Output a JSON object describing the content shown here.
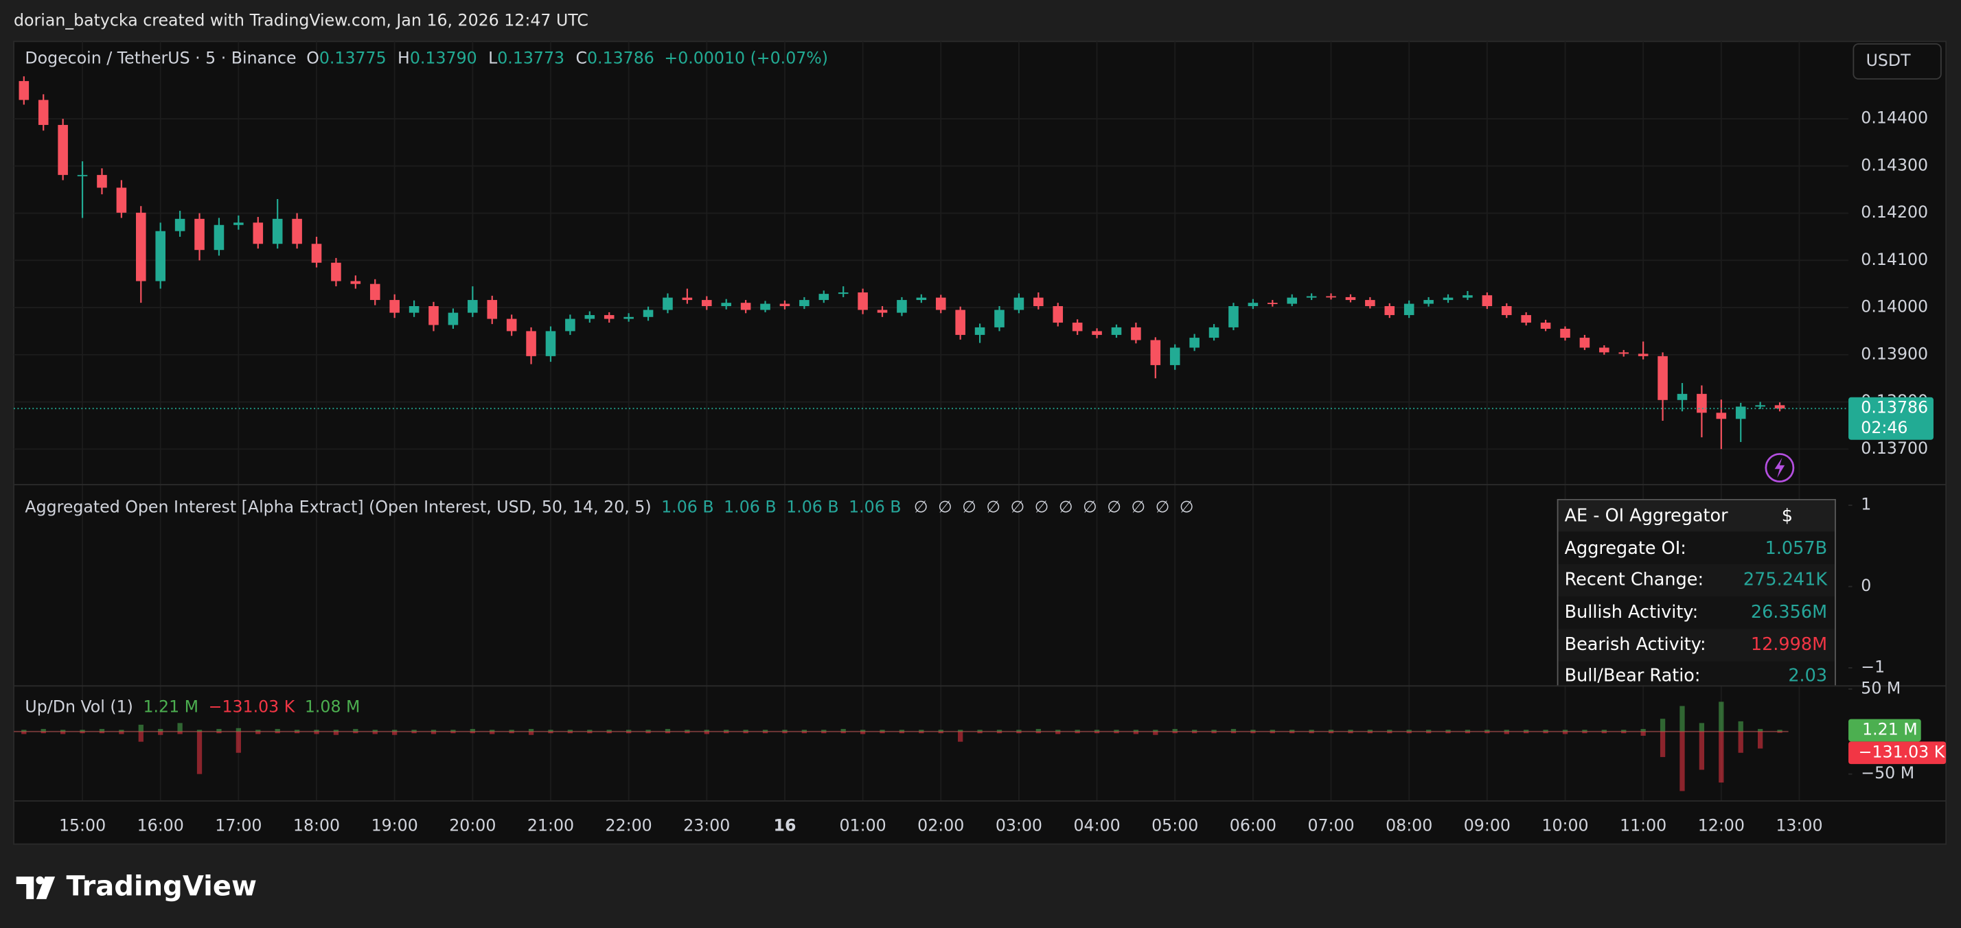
{
  "header": {
    "text": "dorian_batycka created with TradingView.com, Jan 16, 2026 12:47 UTC"
  },
  "footer": {
    "logo_text": "TradingView"
  },
  "currency_button": "USDT",
  "countdown": "02:46",
  "oi_table": {
    "title": "AE - OI Aggregator",
    "currency": "$",
    "rows": [
      [
        "Aggregate OI:",
        "1.057B"
      ],
      [
        "Recent Change:",
        "275.241K"
      ],
      [
        "Bullish Activity:",
        "26.356M"
      ],
      [
        "Bearish Activity:",
        "12.998M"
      ],
      [
        "Bull/Bear Ratio:",
        "2.03"
      ]
    ]
  },
  "chart_data": [
    {
      "type": "candlestick",
      "title": "Dogecoin / TetherUS · 5 · Binance",
      "legend": [
        {
          "label": "O",
          "value": "0.13775"
        },
        {
          "label": "H",
          "value": "0.13790"
        },
        {
          "label": "L",
          "value": "0.13773"
        },
        {
          "label": "C",
          "value": "0.13786"
        }
      ],
      "change": "+0.00010 (+0.07%)",
      "up_color": "#22ab94",
      "down_color": "#f7525f",
      "x": [
        14.25,
        14.5,
        14.75,
        15,
        15.25,
        15.5,
        15.75,
        16,
        16.25,
        16.5,
        16.75,
        17,
        17.25,
        17.5,
        17.75,
        18,
        18.25,
        18.5,
        18.75,
        19,
        19.25,
        19.5,
        19.75,
        20,
        20.25,
        20.5,
        20.75,
        21,
        21.25,
        21.5,
        21.75,
        22,
        22.25,
        22.5,
        22.75,
        23,
        23.25,
        23.5,
        23.75,
        24,
        24.25,
        24.5,
        24.75,
        25,
        25.25,
        25.5,
        25.75,
        26,
        26.25,
        26.5,
        26.75,
        27,
        27.25,
        27.5,
        27.75,
        28,
        28.25,
        28.5,
        28.75,
        29,
        29.25,
        29.5,
        29.75,
        30,
        30.25,
        30.5,
        30.75,
        31,
        31.25,
        31.5,
        31.75,
        32,
        32.25,
        32.5,
        32.75,
        33,
        33.25,
        33.5,
        33.75,
        34,
        34.25,
        34.5,
        34.75,
        35,
        35.25,
        35.5,
        35.75,
        36,
        36.25,
        36.5,
        36.75
      ],
      "open": [
        0.1448,
        0.1444,
        0.14387,
        0.14281,
        0.14281,
        0.14254,
        0.14201,
        0.14056,
        0.14162,
        0.14188,
        0.14122,
        0.14175,
        0.1418,
        0.14135,
        0.14188,
        0.14135,
        0.14095,
        0.14056,
        0.1405,
        0.14016,
        0.13989,
        0.14003,
        0.13963,
        0.13989,
        0.14016,
        0.13976,
        0.1395,
        0.13897,
        0.1395,
        0.13976,
        0.13984,
        0.13976,
        0.1398,
        0.13995,
        0.14021,
        0.14016,
        0.14003,
        0.1401,
        0.13995,
        0.14008,
        0.14003,
        0.14016,
        0.14029,
        0.14032,
        0.13995,
        0.13989,
        0.14016,
        0.14021,
        0.13995,
        0.13942,
        0.13958,
        0.13995,
        0.14021,
        0.14003,
        0.13968,
        0.1395,
        0.13942,
        0.13958,
        0.13931,
        0.13878,
        0.13915,
        0.13936,
        0.13958,
        0.14003,
        0.1401,
        0.14008,
        0.14021,
        0.14024,
        0.14022,
        0.14016,
        0.14003,
        0.13984,
        0.14008,
        0.14016,
        0.14021,
        0.14026,
        0.14003,
        0.13984,
        0.13968,
        0.13955,
        0.13936,
        0.13915,
        0.13905,
        0.13902,
        0.13897,
        0.13804,
        0.13817,
        0.13777,
        0.13764,
        0.1379,
        0.13793
      ],
      "high": [
        0.1449,
        0.14452,
        0.144,
        0.1431,
        0.14295,
        0.1427,
        0.14215,
        0.1418,
        0.14205,
        0.142,
        0.1419,
        0.14195,
        0.14192,
        0.1423,
        0.142,
        0.1415,
        0.14105,
        0.14068,
        0.1406,
        0.14028,
        0.14015,
        0.14012,
        0.13998,
        0.14045,
        0.14025,
        0.13985,
        0.13958,
        0.1396,
        0.13985,
        0.13992,
        0.1399,
        0.13988,
        0.14002,
        0.1403,
        0.1404,
        0.14024,
        0.14018,
        0.14016,
        0.14014,
        0.14015,
        0.14022,
        0.14036,
        0.14045,
        0.1404,
        0.14003,
        0.14022,
        0.14028,
        0.14027,
        0.14002,
        0.13966,
        0.14003,
        0.1403,
        0.14032,
        0.1401,
        0.13975,
        0.13956,
        0.13964,
        0.13968,
        0.13937,
        0.13922,
        0.13944,
        0.13965,
        0.1401,
        0.14018,
        0.14016,
        0.14028,
        0.1403,
        0.1403,
        0.14028,
        0.14022,
        0.14009,
        0.14015,
        0.14022,
        0.14028,
        0.14035,
        0.14032,
        0.14009,
        0.1399,
        0.13974,
        0.1396,
        0.13942,
        0.1392,
        0.1391,
        0.13928,
        0.13905,
        0.1384,
        0.13835,
        0.13805,
        0.13798,
        0.138,
        0.13799
      ],
      "low": [
        0.1443,
        0.14375,
        0.1427,
        0.1419,
        0.1424,
        0.1419,
        0.1401,
        0.1404,
        0.1415,
        0.141,
        0.1411,
        0.14165,
        0.14125,
        0.14125,
        0.14125,
        0.14085,
        0.14045,
        0.1404,
        0.14005,
        0.13978,
        0.1398,
        0.1395,
        0.13955,
        0.1398,
        0.13965,
        0.1394,
        0.1388,
        0.13885,
        0.13942,
        0.13968,
        0.13968,
        0.1397,
        0.13972,
        0.13988,
        0.14008,
        0.13995,
        0.13996,
        0.13988,
        0.1399,
        0.13996,
        0.13997,
        0.1401,
        0.14022,
        0.13986,
        0.1398,
        0.13982,
        0.1401,
        0.13988,
        0.13932,
        0.13925,
        0.1395,
        0.13988,
        0.13996,
        0.1396,
        0.13942,
        0.13935,
        0.13936,
        0.13924,
        0.1385,
        0.13868,
        0.13908,
        0.1393,
        0.13952,
        0.13997,
        0.14002,
        0.14003,
        0.14016,
        0.14017,
        0.14011,
        0.13998,
        0.13978,
        0.13978,
        0.14002,
        0.1401,
        0.14016,
        0.13997,
        0.13978,
        0.13962,
        0.1395,
        0.1393,
        0.1391,
        0.139,
        0.13896,
        0.1389,
        0.1376,
        0.1378,
        0.13725,
        0.137,
        0.13715,
        0.13785,
        0.1378
      ],
      "close": [
        0.1444,
        0.14387,
        0.14281,
        0.14281,
        0.14254,
        0.14201,
        0.14056,
        0.14162,
        0.14188,
        0.14122,
        0.14175,
        0.1418,
        0.14135,
        0.14188,
        0.14135,
        0.14095,
        0.14056,
        0.1405,
        0.14016,
        0.13989,
        0.14003,
        0.13963,
        0.13989,
        0.14016,
        0.13976,
        0.1395,
        0.13897,
        0.1395,
        0.13976,
        0.13984,
        0.13976,
        0.1398,
        0.13995,
        0.14021,
        0.14016,
        0.14003,
        0.1401,
        0.13995,
        0.14008,
        0.14003,
        0.14016,
        0.14029,
        0.14032,
        0.13995,
        0.13989,
        0.14016,
        0.14021,
        0.13995,
        0.13942,
        0.13958,
        0.13995,
        0.14021,
        0.14003,
        0.13968,
        0.1395,
        0.13942,
        0.13958,
        0.13931,
        0.13878,
        0.13915,
        0.13936,
        0.13958,
        0.14003,
        0.1401,
        0.14008,
        0.14021,
        0.14024,
        0.14022,
        0.14016,
        0.14003,
        0.13984,
        0.14008,
        0.14016,
        0.14021,
        0.14026,
        0.14003,
        0.13984,
        0.13968,
        0.13955,
        0.13936,
        0.13915,
        0.13905,
        0.13902,
        0.13897,
        0.13804,
        0.13817,
        0.13777,
        0.13764,
        0.1379,
        0.13793,
        0.13786
      ],
      "xlim": [
        14.12,
        37.63
      ],
      "xticks": [
        {
          "value": 15,
          "label": "15:00"
        },
        {
          "value": 16,
          "label": "16:00"
        },
        {
          "value": 17,
          "label": "17:00"
        },
        {
          "value": 18,
          "label": "18:00"
        },
        {
          "value": 19,
          "label": "19:00"
        },
        {
          "value": 20,
          "label": "20:00"
        },
        {
          "value": 21,
          "label": "21:00"
        },
        {
          "value": 22,
          "label": "22:00"
        },
        {
          "value": 23,
          "label": "23:00"
        },
        {
          "value": 24,
          "label": "16"
        },
        {
          "value": 25,
          "label": "01:00"
        },
        {
          "value": 26,
          "label": "02:00"
        },
        {
          "value": 27,
          "label": "03:00"
        },
        {
          "value": 28,
          "label": "04:00"
        },
        {
          "value": 29,
          "label": "05:00"
        },
        {
          "value": 30,
          "label": "06:00"
        },
        {
          "value": 31,
          "label": "07:00"
        },
        {
          "value": 32,
          "label": "08:00"
        },
        {
          "value": 33,
          "label": "09:00"
        },
        {
          "value": 34,
          "label": "10:00"
        },
        {
          "value": 35,
          "label": "11:00"
        },
        {
          "value": 36,
          "label": "12:00"
        },
        {
          "value": 37,
          "label": "13:00"
        }
      ],
      "ylim": [
        0.13626,
        0.14564
      ],
      "yticks": [
        {
          "value": 0.137,
          "label": "0.13700"
        },
        {
          "value": 0.138,
          "label": "0.13800"
        },
        {
          "value": 0.139,
          "label": "0.13900"
        },
        {
          "value": 0.14,
          "label": "0.14000"
        },
        {
          "value": 0.141,
          "label": "0.14100"
        },
        {
          "value": 0.142,
          "label": "0.14200"
        },
        {
          "value": 0.143,
          "label": "0.14300"
        },
        {
          "value": 0.144,
          "label": "0.14400"
        }
      ],
      "grid": true
    },
    {
      "type": "indicator",
      "title": "Aggregated Open Interest [Alpha Extract] (Open Interest, USD, 50, 14, 20, 5)",
      "legend_values": [
        "1.06 B",
        "1.06 B",
        "1.06 B",
        "1.06 B"
      ],
      "legend_empty": [
        "∅",
        "∅",
        "∅",
        "∅",
        "∅",
        "∅",
        "∅",
        "∅",
        "∅",
        "∅",
        "∅",
        "∅"
      ],
      "ylim": [
        -1.215,
        1.246
      ],
      "yticks": [
        {
          "value": -1,
          "label": "−1"
        },
        0,
        1
      ]
    },
    {
      "type": "updown-volume",
      "title": "Up/Dn Vol (1)",
      "legend_values": [
        "1.21 M",
        "−131.03 K",
        "1.08 M"
      ],
      "ylim": [
        -80.9,
        52.9
      ],
      "yticks": [
        {
          "value": -50,
          "label": "−50 M"
        },
        {
          "value": 50,
          "label": "50 M"
        }
      ],
      "series": [
        {
          "name": "Up",
          "color": "#4caf50",
          "values": [
            2,
            3,
            2,
            2,
            3,
            2,
            8,
            3,
            10,
            2,
            3,
            4,
            2,
            3,
            2,
            2,
            2,
            3,
            2,
            2,
            2,
            2,
            2,
            3,
            2,
            2,
            3,
            2,
            2,
            2,
            2,
            2,
            2,
            3,
            2,
            2,
            2,
            2,
            2,
            2,
            2,
            2,
            3,
            2,
            2,
            2,
            2,
            2,
            2,
            2,
            2,
            2,
            3,
            2,
            2,
            2,
            2,
            2,
            2,
            3,
            2,
            2,
            3,
            2,
            2,
            2,
            2,
            2,
            2,
            2,
            2,
            2,
            2,
            2,
            2,
            2,
            2,
            2,
            2,
            2,
            2,
            2,
            2,
            3,
            15,
            30,
            10,
            35,
            12,
            3,
            2
          ]
        },
        {
          "name": "Down",
          "color": "#f23645",
          "values": [
            -3,
            -2,
            -3,
            -2,
            -2,
            -3,
            -12,
            -4,
            -3,
            -50,
            -2,
            -25,
            -3,
            -2,
            -2,
            -3,
            -4,
            -2,
            -3,
            -4,
            -2,
            -3,
            -2,
            -2,
            -3,
            -2,
            -4,
            -2,
            -2,
            -2,
            -2,
            -2,
            -2,
            -2,
            -2,
            -3,
            -2,
            -2,
            -2,
            -2,
            -2,
            -2,
            -2,
            -3,
            -2,
            -2,
            -2,
            -2,
            -12,
            -2,
            -2,
            -2,
            -2,
            -3,
            -2,
            -2,
            -2,
            -3,
            -4,
            -2,
            -2,
            -2,
            -2,
            -2,
            -2,
            -2,
            -2,
            -2,
            -2,
            -2,
            -2,
            -2,
            -2,
            -2,
            -2,
            -2,
            -3,
            -2,
            -2,
            -3,
            -2,
            -2,
            -2,
            -5,
            -30,
            -70,
            -45,
            -60,
            -25,
            -20,
            -1
          ]
        }
      ]
    }
  ]
}
